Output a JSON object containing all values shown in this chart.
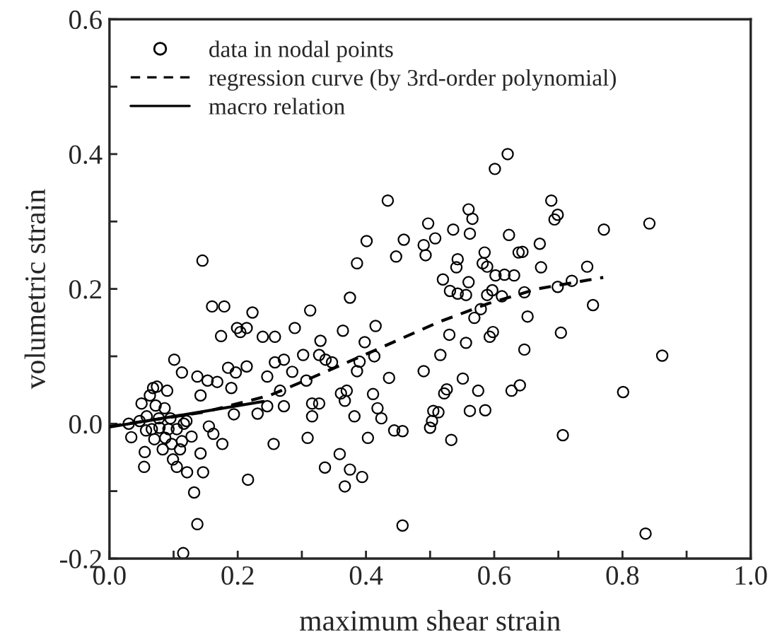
{
  "chart_data": {
    "type": "scatter",
    "xlabel": "maximum shear strain",
    "ylabel": "volumetric strain",
    "xlim": [
      0.0,
      1.0
    ],
    "ylim": [
      -0.2,
      0.6
    ],
    "xticks": [
      {
        "value": 0.0,
        "label": "0.0"
      },
      {
        "value": 0.1,
        "label": null
      },
      {
        "value": 0.2,
        "label": "0.2"
      },
      {
        "value": 0.3,
        "label": null
      },
      {
        "value": 0.4,
        "label": "0.4"
      },
      {
        "value": 0.5,
        "label": null
      },
      {
        "value": 0.6,
        "label": "0.6"
      },
      {
        "value": 0.7,
        "label": null
      },
      {
        "value": 0.8,
        "label": "0.8"
      },
      {
        "value": 0.9,
        "label": null
      },
      {
        "value": 1.0,
        "label": "1.0"
      }
    ],
    "yticks": [
      {
        "value": -0.2,
        "label": "-0.2"
      },
      {
        "value": -0.1,
        "label": null
      },
      {
        "value": 0.0,
        "label": "0.0"
      },
      {
        "value": 0.1,
        "label": null
      },
      {
        "value": 0.2,
        "label": "0.2"
      },
      {
        "value": 0.3,
        "label": null
      },
      {
        "value": 0.4,
        "label": "0.4"
      },
      {
        "value": 0.5,
        "label": null
      },
      {
        "value": 0.6,
        "label": "0.6"
      }
    ],
    "grid": false,
    "legend": "top left",
    "series": [
      {
        "name": "data in nodal points",
        "marker": "circle",
        "color": "#000000",
        "x": [
          0.03,
          0.034,
          0.05,
          0.054,
          0.055,
          0.063,
          0.068,
          0.074,
          0.072,
          0.066,
          0.07,
          0.077,
          0.083,
          0.09,
          0.086,
          0.092,
          0.097,
          0.101,
          0.099,
          0.105,
          0.11,
          0.113,
          0.116,
          0.121,
          0.128,
          0.132,
          0.137,
          0.137,
          0.142,
          0.142,
          0.145,
          0.146,
          0.153,
          0.155,
          0.162,
          0.16,
          0.168,
          0.174,
          0.176,
          0.179,
          0.185,
          0.19,
          0.194,
          0.197,
          0.199,
          0.204,
          0.214,
          0.214,
          0.216,
          0.223,
          0.231,
          0.239,
          0.246,
          0.246,
          0.256,
          0.258,
          0.258,
          0.266,
          0.272,
          0.272,
          0.285,
          0.289,
          0.302,
          0.307,
          0.309,
          0.313,
          0.316,
          0.316,
          0.327,
          0.329,
          0.327,
          0.336,
          0.337,
          0.347,
          0.359,
          0.361,
          0.364,
          0.367,
          0.37,
          0.367,
          0.375,
          0.375,
          0.382,
          0.386,
          0.386,
          0.39,
          0.394,
          0.398,
          0.401,
          0.403,
          0.411,
          0.413,
          0.415,
          0.418,
          0.424,
          0.434,
          0.436,
          0.444,
          0.447,
          0.457,
          0.457,
          0.459,
          0.49,
          0.49,
          0.493,
          0.497,
          0.5,
          0.503,
          0.505,
          0.508,
          0.513,
          0.516,
          0.52,
          0.522,
          0.526,
          0.53,
          0.531,
          0.533,
          0.536,
          0.541,
          0.543,
          0.543,
          0.551,
          0.556,
          0.556,
          0.56,
          0.56,
          0.562,
          0.562,
          0.566,
          0.569,
          0.575,
          0.579,
          0.582,
          0.585,
          0.586,
          0.589,
          0.589,
          0.593,
          0.597,
          0.598,
          0.601,
          0.602,
          0.612,
          0.616,
          0.621,
          0.623,
          0.627,
          0.631,
          0.638,
          0.64,
          0.644,
          0.647,
          0.647,
          0.652,
          0.671,
          0.673,
          0.689,
          0.694,
          0.699,
          0.699,
          0.704,
          0.707,
          0.721,
          0.745,
          0.754,
          0.771,
          0.801,
          0.836,
          0.842,
          0.862,
          0.115,
          0.047,
          0.058,
          0.057,
          0.078,
          0.095,
          0.087,
          0.105,
          0.113,
          0.12
        ],
        "values": [
          0.0,
          -0.02,
          0.03,
          -0.064,
          -0.042,
          0.042,
          0.053,
          0.055,
          0.027,
          -0.008,
          -0.023,
          0.008,
          -0.038,
          0.049,
          0.023,
          -0.008,
          -0.03,
          0.095,
          -0.053,
          -0.064,
          -0.038,
          0.076,
          0.0,
          -0.072,
          -0.019,
          -0.102,
          0.07,
          -0.149,
          0.042,
          -0.044,
          0.242,
          -0.072,
          0.064,
          -0.004,
          -0.015,
          0.174,
          0.062,
          0.13,
          -0.03,
          0.174,
          0.083,
          0.053,
          0.014,
          0.076,
          0.142,
          0.136,
          0.142,
          0.085,
          -0.083,
          0.165,
          0.015,
          0.129,
          0.07,
          0.026,
          -0.03,
          0.129,
          0.091,
          0.049,
          0.095,
          0.026,
          0.077,
          0.142,
          0.102,
          0.064,
          -0.021,
          0.168,
          0.03,
          0.011,
          0.03,
          0.123,
          0.102,
          -0.065,
          0.095,
          0.091,
          -0.045,
          0.045,
          0.138,
          -0.093,
          0.049,
          0.034,
          0.187,
          -0.068,
          0.011,
          0.238,
          0.078,
          0.092,
          -0.079,
          0.121,
          0.271,
          -0.021,
          0.044,
          0.1,
          0.145,
          0.023,
          0.008,
          0.331,
          0.068,
          -0.01,
          0.248,
          -0.011,
          -0.151,
          0.273,
          0.078,
          0.265,
          0.25,
          0.297,
          -0.006,
          0.004,
          0.019,
          0.275,
          0.017,
          0.102,
          0.214,
          0.045,
          0.051,
          0.132,
          0.197,
          -0.024,
          0.288,
          0.232,
          0.244,
          0.193,
          0.067,
          0.191,
          0.12,
          0.21,
          0.318,
          0.282,
          0.019,
          0.304,
          0.157,
          0.049,
          0.17,
          0.238,
          0.254,
          0.02,
          0.233,
          0.191,
          0.129,
          0.198,
          0.136,
          0.378,
          0.22,
          0.189,
          0.221,
          0.4,
          0.28,
          0.049,
          0.22,
          0.254,
          0.057,
          0.255,
          0.195,
          0.11,
          0.159,
          0.267,
          0.232,
          0.331,
          0.303,
          0.31,
          0.203,
          0.135,
          -0.017,
          0.212,
          0.233,
          0.176,
          0.288,
          0.047,
          -0.163,
          0.297,
          0.101,
          -0.192,
          0.004,
          0.011,
          -0.01,
          -0.006,
          0.008,
          -0.021,
          -0.008,
          -0.026,
          0.004
        ]
      },
      {
        "name": "regression curve (by 3rd-order polynomial)",
        "type": "line",
        "line_style": "dashed",
        "color": "#000000",
        "x": [
          0.0,
          0.147,
          0.25,
          0.315,
          0.407,
          0.514,
          0.59,
          0.667,
          0.77
        ],
        "values": [
          -0.004,
          0.017,
          0.042,
          0.068,
          0.106,
          0.151,
          0.178,
          0.2,
          0.217
        ]
      },
      {
        "name": "macro relation",
        "type": "line",
        "line_style": "solid",
        "color": "#000000",
        "x": [
          0.0,
          0.24
        ],
        "values": [
          -0.005,
          0.033
        ]
      }
    ]
  }
}
